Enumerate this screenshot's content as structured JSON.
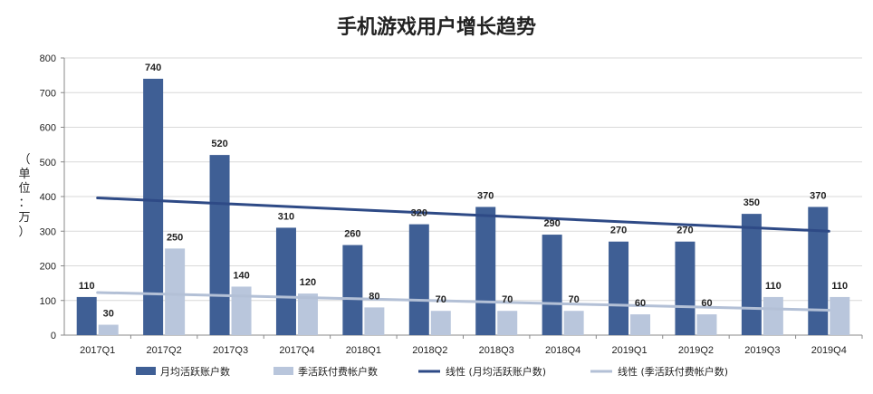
{
  "chart_data": {
    "type": "bar",
    "title": "手机游戏用户增长趋势",
    "ylabel": [
      "（",
      "单",
      "位",
      "：",
      "万",
      "）"
    ],
    "ylim": [
      0,
      800
    ],
    "yticks": [
      0,
      100,
      200,
      300,
      400,
      500,
      600,
      700,
      800
    ],
    "categories": [
      "2017Q1",
      "2017Q2",
      "2017Q3",
      "2017Q4",
      "2018Q1",
      "2018Q2",
      "2018Q3",
      "2018Q4",
      "2019Q1",
      "2019Q2",
      "2019Q3",
      "2019Q4"
    ],
    "series": [
      {
        "name": "月均活跃账户数",
        "color": "#3F5F95",
        "values": [
          110,
          740,
          520,
          310,
          260,
          320,
          370,
          290,
          270,
          270,
          350,
          370
        ]
      },
      {
        "name": "季活跃付费帐户数",
        "color": "#B9C6DC",
        "values": [
          30,
          250,
          140,
          120,
          80,
          70,
          70,
          70,
          60,
          60,
          110,
          110
        ]
      }
    ],
    "trendlines": [
      {
        "name": "线性 (月均活跃账户数)",
        "color": "#2E4A86",
        "start": 396,
        "end": 300
      },
      {
        "name": "线性 (季活跃付费帐户数)",
        "color": "#B3C0D6",
        "start": 123,
        "end": 72
      }
    ],
    "grid": true,
    "legend": "bottom"
  }
}
